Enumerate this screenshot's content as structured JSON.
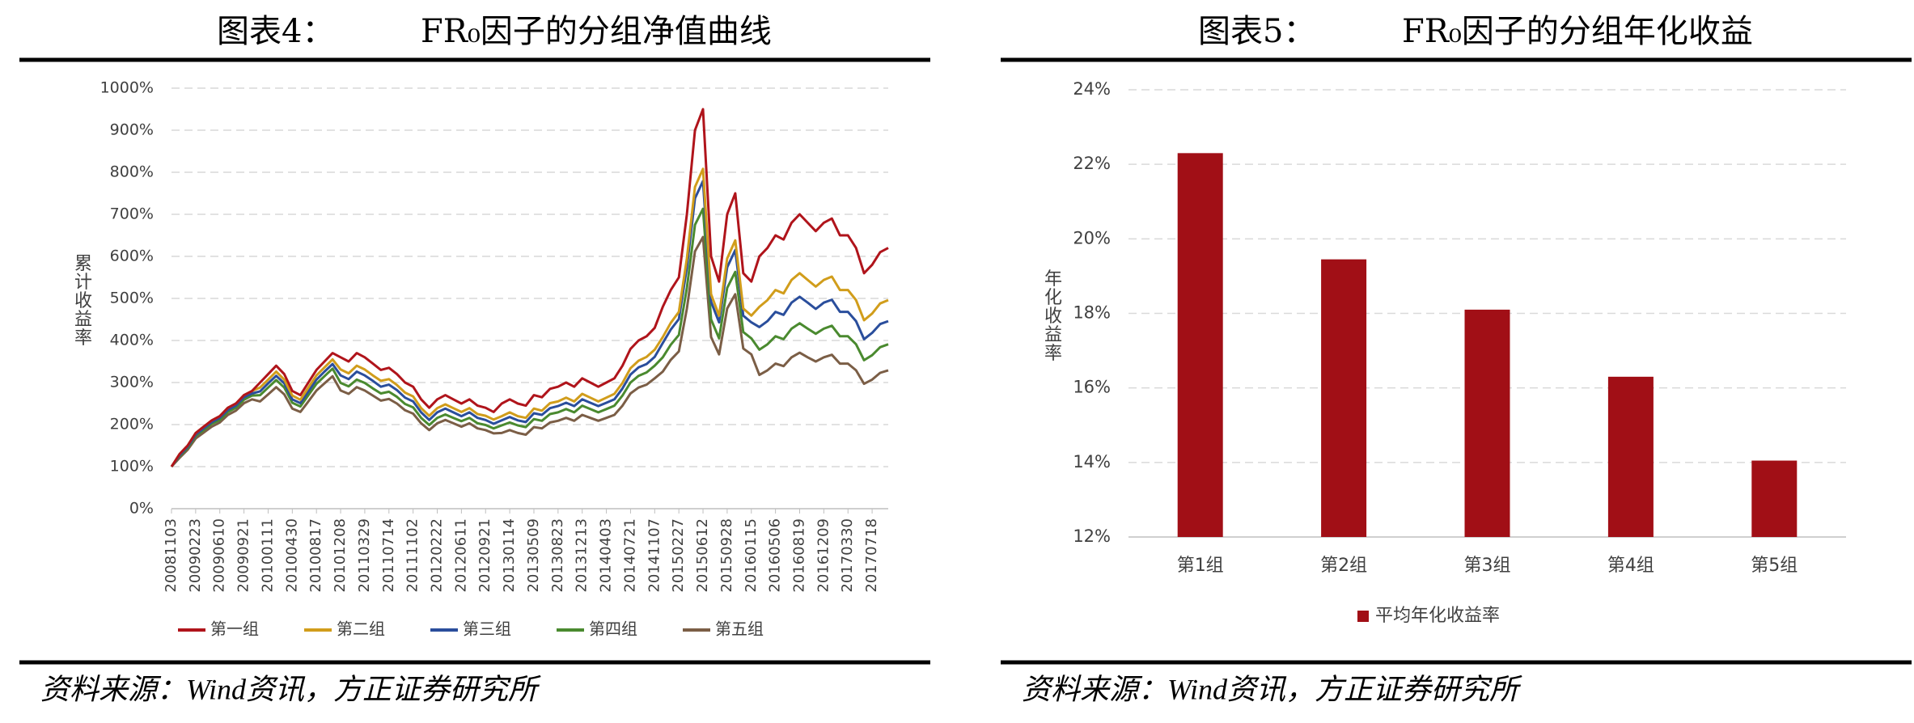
{
  "chart_data": [
    {
      "type": "line",
      "figure_label": "图表4：",
      "title": "FR₀因子的分组净值曲线",
      "y_label": "累计收益率",
      "source": "资料来源：Wind资讯，方正证券研究所",
      "categories": [
        "20081103",
        null,
        null,
        "20090223",
        null,
        null,
        "20090610",
        null,
        null,
        "20090921",
        null,
        null,
        "20100111",
        null,
        null,
        "20100430",
        null,
        null,
        "20100817",
        null,
        null,
        "20101208",
        null,
        null,
        "20110329",
        null,
        null,
        "20110714",
        null,
        null,
        "20111102",
        null,
        null,
        "20120222",
        null,
        null,
        "20120611",
        null,
        null,
        "20120921",
        null,
        null,
        "20130114",
        null,
        null,
        "20130509",
        null,
        null,
        "20130823",
        null,
        null,
        "20131213",
        null,
        null,
        "20140403",
        null,
        null,
        "20140721",
        null,
        null,
        "20141107",
        null,
        null,
        "20150227",
        null,
        null,
        "20150612",
        null,
        null,
        "20150928",
        null,
        null,
        "20160115",
        null,
        null,
        "20160506",
        null,
        null,
        "20160819",
        null,
        null,
        "20161209",
        null,
        null,
        "20170330",
        null,
        null,
        "20170718",
        null,
        null
      ],
      "series": [
        {
          "name": "第一组",
          "color": "#b0141b",
          "values": [
            100,
            130,
            150,
            180,
            195,
            210,
            220,
            240,
            250,
            270,
            280,
            300,
            320,
            340,
            320,
            280,
            270,
            300,
            330,
            350,
            370,
            360,
            350,
            370,
            360,
            345,
            330,
            335,
            320,
            300,
            290,
            260,
            240,
            260,
            270,
            260,
            250,
            260,
            245,
            240,
            230,
            250,
            260,
            250,
            245,
            270,
            265,
            285,
            290,
            300,
            290,
            310,
            300,
            290,
            300,
            310,
            340,
            380,
            400,
            410,
            430,
            480,
            520,
            550,
            700,
            900,
            950,
            600,
            540,
            700,
            750,
            560,
            540,
            600,
            620,
            650,
            640,
            680,
            700,
            680,
            660,
            680,
            690,
            650,
            650,
            620,
            560,
            580,
            610,
            620
          ]
        },
        {
          "name": "第二组",
          "color": "#d19d1b",
          "values": [
            100,
            130,
            150,
            180,
            195,
            210,
            220,
            240,
            250,
            270,
            280,
            288,
            307,
            326,
            307,
            269,
            259,
            288,
            317,
            336,
            355,
            331,
            322,
            340,
            331,
            317,
            304,
            308,
            294,
            276,
            267,
            239,
            221,
            239,
            248,
            239,
            230,
            239,
            225,
            221,
            212,
            220,
            229,
            220,
            216,
            238,
            233,
            251,
            255,
            264,
            255,
            273,
            264,
            255,
            264,
            273,
            299,
            334,
            352,
            361,
            378,
            408,
            442,
            468,
            595,
            765,
            808,
            510,
            459,
            595,
            638,
            476,
            459,
            480,
            496,
            520,
            512,
            544,
            560,
            544,
            528,
            544,
            552,
            520,
            520,
            496,
            448,
            464,
            488,
            496
          ]
        },
        {
          "name": "第三组",
          "color": "#2a4e9c",
          "values": [
            100,
            127,
            147,
            176,
            191,
            206,
            216,
            235,
            245,
            265,
            274,
            279,
            298,
            316,
            298,
            260,
            251,
            279,
            307,
            326,
            344,
            317,
            308,
            326,
            317,
            304,
            290,
            295,
            282,
            264,
            255,
            229,
            211,
            229,
            238,
            229,
            220,
            229,
            216,
            211,
            202,
            210,
            218,
            210,
            206,
            227,
            223,
            239,
            244,
            252,
            244,
            260,
            252,
            244,
            252,
            260,
            286,
            319,
            336,
            344,
            361,
            394,
            426,
            451,
            574,
            738,
            779,
            492,
            443,
            574,
            615,
            459,
            443,
            432,
            446,
            468,
            461,
            490,
            504,
            490,
            475,
            490,
            497,
            468,
            468,
            446,
            403,
            418,
            439,
            446
          ]
        },
        {
          "name": "第四组",
          "color": "#4a8a2f",
          "values": [
            100,
            125,
            144,
            173,
            187,
            202,
            211,
            230,
            240,
            259,
            269,
            270,
            288,
            306,
            288,
            252,
            243,
            270,
            297,
            315,
            333,
            299,
            291,
            307,
            299,
            286,
            274,
            278,
            266,
            249,
            241,
            216,
            199,
            216,
            224,
            216,
            208,
            216,
            203,
            199,
            191,
            198,
            205,
            198,
            194,
            213,
            209,
            225,
            229,
            237,
            229,
            245,
            237,
            229,
            237,
            245,
            269,
            300,
            316,
            324,
            340,
            360,
            390,
            413,
            525,
            675,
            713,
            450,
            405,
            525,
            563,
            420,
            405,
            378,
            391,
            410,
            403,
            428,
            441,
            428,
            416,
            428,
            435,
            410,
            410,
            391,
            353,
            365,
            384,
            391
          ]
        },
        {
          "name": "第五组",
          "color": "#7b5e46",
          "values": [
            100,
            121,
            140,
            167,
            181,
            195,
            205,
            223,
            233,
            251,
            260,
            255,
            272,
            289,
            272,
            238,
            230,
            255,
            281,
            298,
            315,
            281,
            273,
            289,
            281,
            269,
            257,
            261,
            250,
            234,
            226,
            203,
            187,
            203,
            211,
            203,
            195,
            203,
            191,
            187,
            179,
            180,
            187,
            180,
            176,
            194,
            191,
            205,
            209,
            216,
            209,
            223,
            216,
            209,
            216,
            223,
            245,
            274,
            288,
            295,
            310,
            326,
            354,
            374,
            476,
            612,
            646,
            408,
            367,
            476,
            510,
            381,
            367,
            318,
            329,
            345,
            339,
            360,
            371,
            360,
            350,
            360,
            366,
            345,
            345,
            329,
            297,
            307,
            323,
            329
          ]
        }
      ],
      "ylim": [
        0,
        1000
      ],
      "yticks": [
        {
          "value": 0,
          "label": "0%"
        },
        {
          "value": 100,
          "label": "100%"
        },
        {
          "value": 200,
          "label": "200%"
        },
        {
          "value": 300,
          "label": "300%"
        },
        {
          "value": 400,
          "label": "400%"
        },
        {
          "value": 500,
          "label": "500%"
        },
        {
          "value": 600,
          "label": "600%"
        },
        {
          "value": 700,
          "label": "700%"
        },
        {
          "value": 800,
          "label": "800%"
        },
        {
          "value": 900,
          "label": "900%"
        },
        {
          "value": 1000,
          "label": "1000%"
        }
      ],
      "grid": true,
      "legend": "bottom"
    },
    {
      "type": "bar",
      "figure_label": "图表5：",
      "title": "FR₀因子的分组年化收益",
      "y_label": "年化收益率",
      "source": "资料来源：Wind资讯，方正证券研究所",
      "categories": [
        "第1组",
        "第2组",
        "第3组",
        "第4组",
        "第5组"
      ],
      "series": [
        {
          "name": "平均年化收益率",
          "color": "#a10f16",
          "values": [
            22.3,
            19.45,
            18.1,
            16.3,
            14.05
          ]
        }
      ],
      "ylim": [
        12,
        24
      ],
      "yticks": [
        {
          "value": 12,
          "label": "12%"
        },
        {
          "value": 14,
          "label": "14%"
        },
        {
          "value": 16,
          "label": "16%"
        },
        {
          "value": 18,
          "label": "18%"
        },
        {
          "value": 20,
          "label": "20%"
        },
        {
          "value": 22,
          "label": "22%"
        },
        {
          "value": 24,
          "label": "24%"
        }
      ],
      "grid": true,
      "legend": "bottom"
    }
  ]
}
